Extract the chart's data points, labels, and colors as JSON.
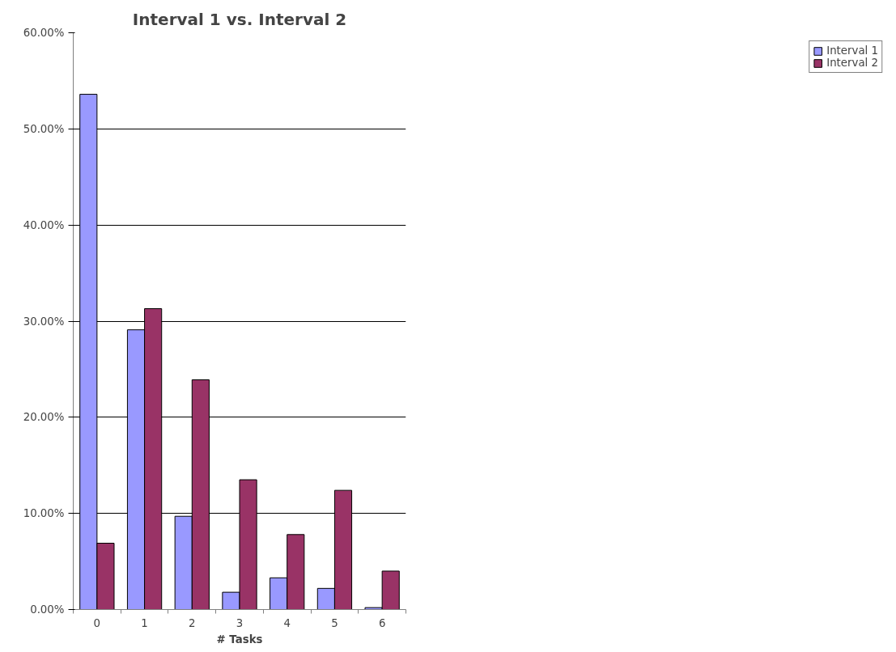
{
  "chart_data": {
    "type": "bar",
    "title": "Interval 1 vs. Interval 2",
    "xlabel": "# Tasks",
    "categories": [
      "0",
      "1",
      "2",
      "3",
      "4",
      "5",
      "6"
    ],
    "series": [
      {
        "name": "Interval 1",
        "color": "#9999ff",
        "values": [
          53.6,
          29.1,
          9.7,
          1.8,
          3.3,
          2.2,
          0.2
        ]
      },
      {
        "name": "Interval 2",
        "color": "#993366",
        "values": [
          6.9,
          31.3,
          23.9,
          13.5,
          7.8,
          12.4,
          4.0
        ]
      }
    ],
    "ylim": [
      0,
      60
    ],
    "yticks": [
      {
        "value": 0,
        "label": "0.00%"
      },
      {
        "value": 10,
        "label": "10.00%"
      },
      {
        "value": 20,
        "label": "20.00%"
      },
      {
        "value": 30,
        "label": "30.00%"
      },
      {
        "value": 40,
        "label": "40.00%"
      },
      {
        "value": 50,
        "label": "50.00%"
      },
      {
        "value": 60,
        "label": "60.00%"
      }
    ],
    "grid": "y",
    "legend": "right"
  }
}
